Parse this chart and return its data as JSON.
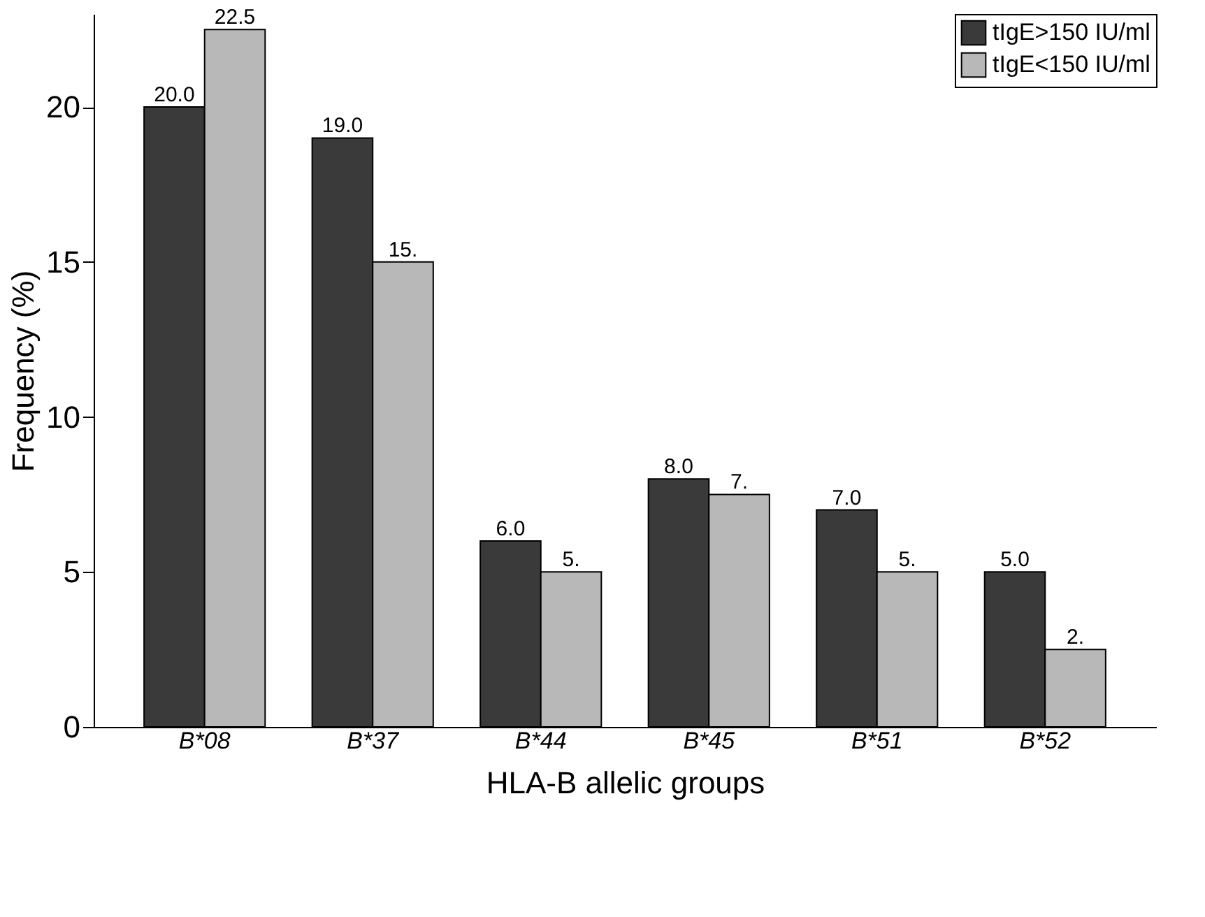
{
  "chart_data": {
    "type": "bar",
    "xlabel": "HLA-B allelic groups",
    "ylabel": "Frequency (%)",
    "categories": [
      "B*08",
      "B*37",
      "B*44",
      "B*45",
      "B*51",
      "B*52"
    ],
    "series": [
      {
        "name": "tIgE>150 IU/ml",
        "color": "#3a3a3a",
        "values": [
          20.0,
          19.0,
          6.0,
          8.0,
          7.0,
          5.0
        ],
        "value_labels": [
          "20.0",
          "19.0",
          "6.0",
          "8.0",
          "7.0",
          "5.0"
        ]
      },
      {
        "name": "tIgE<150 IU/ml",
        "color": "#b8b8b8",
        "values": [
          22.5,
          15,
          5,
          7.5,
          5,
          2.5
        ],
        "value_labels": [
          "22.5",
          "15.",
          "5.",
          "7.",
          "5.",
          "2."
        ]
      }
    ],
    "ylim": [
      0,
      23
    ],
    "yticks": [
      0,
      5,
      10,
      15,
      20
    ],
    "grid": false,
    "legend": "top right"
  }
}
